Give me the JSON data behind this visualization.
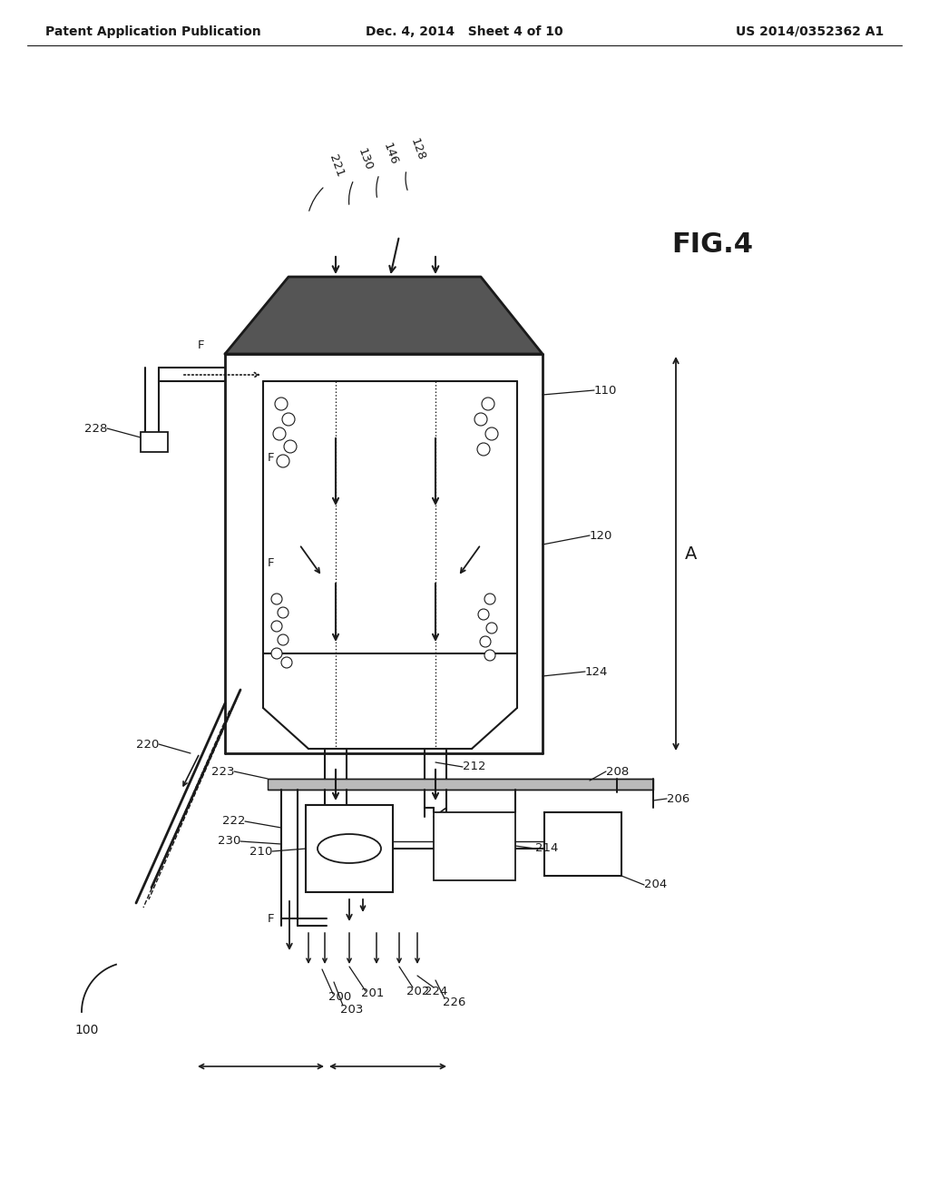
{
  "bg_color": "#ffffff",
  "line_color": "#1a1a1a",
  "header_left": "Patent Application Publication",
  "header_center": "Dec. 4, 2014   Sheet 4 of 10",
  "header_right": "US 2014/0352362 A1",
  "fig_label": "FIG.4"
}
